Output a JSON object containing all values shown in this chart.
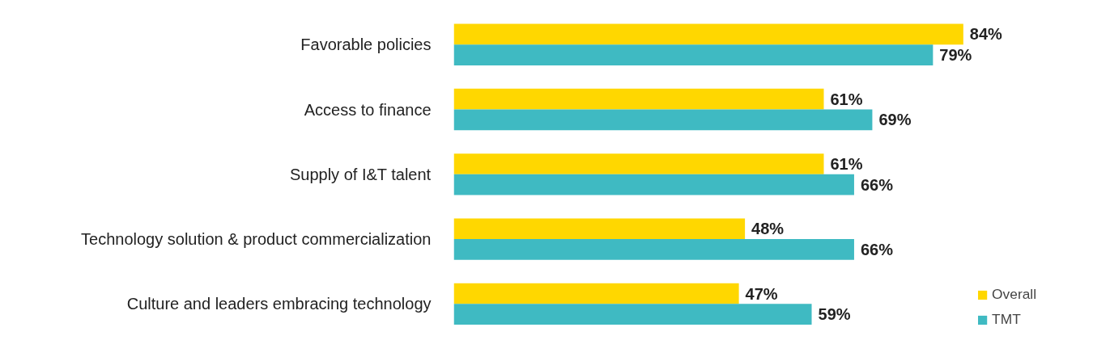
{
  "chart_data": {
    "type": "bar",
    "orientation": "horizontal",
    "categories": [
      "Favorable policies",
      "Access to finance",
      "Supply of I&T talent",
      "Technology solution & product commercialization",
      "Culture and leaders embracing technology"
    ],
    "series": [
      {
        "name": "Overall",
        "color": "#ffd700",
        "values": [
          84,
          61,
          61,
          48,
          47
        ],
        "value_labels": [
          "84%",
          "61%",
          "61%",
          "48%",
          "47%"
        ]
      },
      {
        "name": "TMT",
        "color": "#3fbac2",
        "values": [
          79,
          69,
          66,
          66,
          59
        ],
        "value_labels": [
          "79%",
          "69%",
          "66%",
          "66%",
          "59%"
        ]
      }
    ],
    "legend": "bottom right",
    "grid": false,
    "tick_labels": "y"
  }
}
